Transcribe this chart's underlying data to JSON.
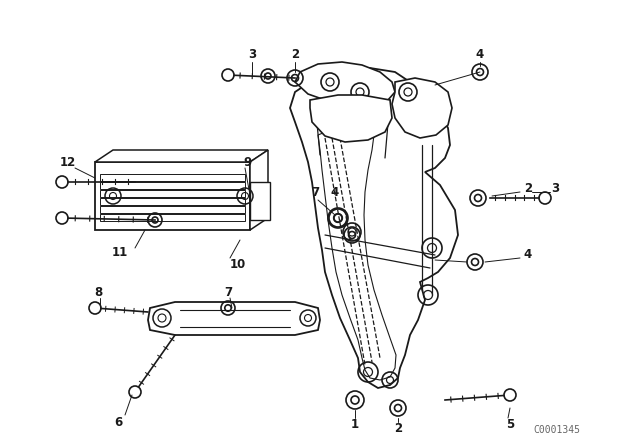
{
  "background_color": "#ffffff",
  "line_color": "#1a1a1a",
  "fig_width": 6.4,
  "fig_height": 4.48,
  "dpi": 100,
  "watermark": "C0001345",
  "watermark_fontsize": 7
}
